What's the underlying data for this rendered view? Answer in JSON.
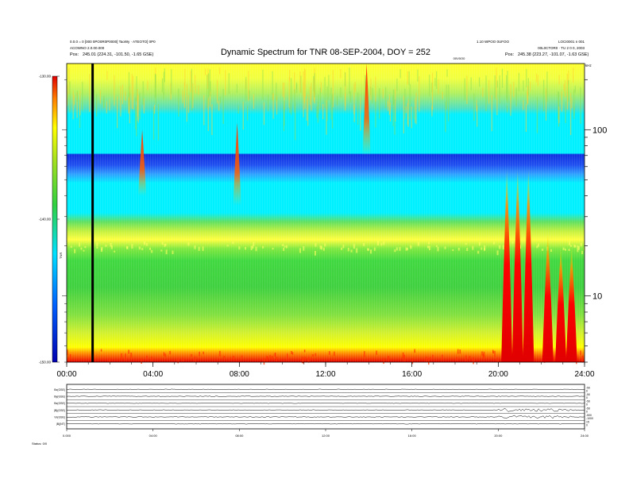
{
  "header": {
    "title": "Dynamic Spectrum for TNR 08-SEP-2004, DOY = 252",
    "left_line1": "0.0.0 = 0 [000 0PO0R0P0000] TaoWy · ATEOTO] 0P0",
    "left_line2": "ACOWNO 2.0.00.000",
    "left_pos_label": "Pos:",
    "left_pos_value": "245.01 (224.31, -101.50, -1.65 GSE)",
    "right_line1": "1.10 WPOO 0UFOO",
    "right_line1b": "LOCI0001 n 001",
    "right_line2": "00L0CTOR0 · TU 2 0 0, 2003",
    "right_pos_label": "Pos:",
    "right_pos_value": "245.38 (223.27, -101.07, -1.63 GSE)",
    "right_tag": "00V0O0",
    "unit_label": "kHz"
  },
  "colorbar": {
    "label": "TNR",
    "ticks": [
      {
        "value": -130,
        "text": "-130.00"
      },
      {
        "value": -140,
        "text": "-140.00"
      },
      {
        "value": -150,
        "text": "-150.00"
      }
    ]
  },
  "chart_data": [
    {
      "type": "heatmap",
      "title": "Dynamic Spectrum for TNR 08-SEP-2004, DOY = 252",
      "xlabel": "",
      "ylabel": "kHz",
      "x_ticks": [
        "00:00",
        "04:00",
        "08:00",
        "12:00",
        "16:00",
        "20:00",
        "24:00"
      ],
      "x_range_hours": [
        0,
        24
      ],
      "y_scale": "log",
      "y_ticks": [
        10,
        100
      ],
      "y_range_khz": [
        4,
        250
      ],
      "colorbar_range": [
        -150,
        -130
      ],
      "marker_time_hours": 1.2,
      "bands": [
        {
          "name": "upper-noise",
          "khz": [
            130,
            250
          ],
          "level": -133
        },
        {
          "name": "quiet-cyan",
          "khz": [
            66,
            130
          ],
          "level": -138
        },
        {
          "name": "dark-blue-strip",
          "khz": [
            48,
            66
          ],
          "level": -147
        },
        {
          "name": "mid-cyan",
          "khz": [
            22,
            48
          ],
          "level": -139
        },
        {
          "name": "plasma-line",
          "khz": [
            16,
            22
          ],
          "level": -134
        },
        {
          "name": "green-continuum",
          "khz": [
            7,
            16
          ],
          "level": -137
        },
        {
          "name": "yellow-floor",
          "khz": [
            5,
            7
          ],
          "level": -132
        },
        {
          "name": "red-floor",
          "khz": [
            4,
            5
          ],
          "level": -130
        }
      ],
      "bursts": [
        {
          "time_hours": 3.5,
          "khz": [
            40,
            100
          ],
          "level": -133
        },
        {
          "time_hours": 7.9,
          "khz": [
            35,
            110
          ],
          "level": -131
        },
        {
          "time_hours": 13.9,
          "khz": [
            70,
            250
          ],
          "level": -130
        },
        {
          "time_hours": 20.4,
          "khz": [
            4,
            60
          ],
          "level": -130
        },
        {
          "time_hours": 20.9,
          "khz": [
            4,
            60
          ],
          "level": -130
        },
        {
          "time_hours": 21.4,
          "khz": [
            4,
            60
          ],
          "level": -130
        },
        {
          "time_hours": 22.3,
          "khz": [
            4,
            25
          ],
          "level": -130
        },
        {
          "time_hours": 22.9,
          "khz": [
            4,
            20
          ],
          "level": -130
        },
        {
          "time_hours": 23.4,
          "khz": [
            4,
            20
          ],
          "level": -130
        }
      ]
    },
    {
      "type": "line",
      "title": "",
      "x_range_hours": [
        0,
        24
      ],
      "x_ticks": [
        "0.000",
        "04:00",
        "08:00",
        "12:00",
        "16:00",
        "20:00",
        "24:00"
      ],
      "series": [
        {
          "name": "Bx(GSE)",
          "right_scale": [
            "-50",
            "0"
          ]
        },
        {
          "name": "By(GSE)",
          "right_scale": [
            "-50",
            "0"
          ]
        },
        {
          "name": "Bz(GSE)",
          "right_scale": [
            "-50",
            "0"
          ]
        },
        {
          "name": "|B|(GSE)",
          "right_scale": [
            "-50",
            "0"
          ]
        },
        {
          "name": "Vx(GSE)",
          "right_scale": [
            "-500",
            "-1000"
          ]
        },
        {
          "name": "|B|(NT)",
          "right_scale": [
            "15",
            "0"
          ]
        }
      ],
      "footer_label": "Status: 0/0"
    }
  ]
}
